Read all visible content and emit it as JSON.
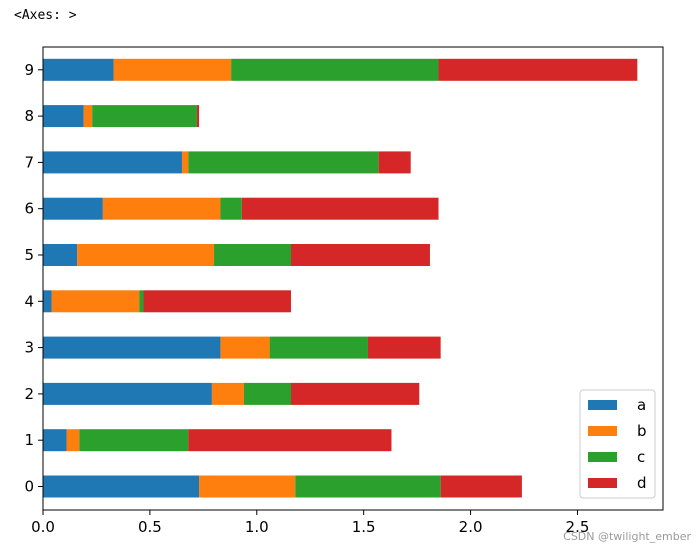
{
  "output_label": "<Axes: >",
  "watermark": "CSDN @twilight_ember",
  "colors": {
    "a": "#1f77b4",
    "b": "#ff7f0e",
    "c": "#2ca02c",
    "d": "#d62728"
  },
  "chart_data": {
    "type": "bar",
    "orientation": "horizontal",
    "stacked": true,
    "title": "",
    "xlabel": "",
    "ylabel": "",
    "categories": [
      "0",
      "1",
      "2",
      "3",
      "4",
      "5",
      "6",
      "7",
      "8",
      "9"
    ],
    "xlim": [
      0,
      2.9
    ],
    "xticks": [
      "0.0",
      "0.5",
      "1.0",
      "1.5",
      "2.0",
      "2.5"
    ],
    "grid": false,
    "legend_position": "bottom-right",
    "series": [
      {
        "name": "a",
        "values": [
          0.73,
          0.11,
          0.79,
          0.83,
          0.04,
          0.16,
          0.28,
          0.65,
          0.19,
          0.33
        ]
      },
      {
        "name": "b",
        "values": [
          0.45,
          0.06,
          0.15,
          0.23,
          0.41,
          0.64,
          0.55,
          0.03,
          0.04,
          0.55
        ]
      },
      {
        "name": "c",
        "values": [
          0.68,
          0.51,
          0.22,
          0.46,
          0.02,
          0.36,
          0.1,
          0.89,
          0.49,
          0.97
        ]
      },
      {
        "name": "d",
        "values": [
          0.38,
          0.95,
          0.6,
          0.34,
          0.69,
          0.65,
          0.92,
          0.15,
          0.01,
          0.93
        ]
      }
    ]
  }
}
